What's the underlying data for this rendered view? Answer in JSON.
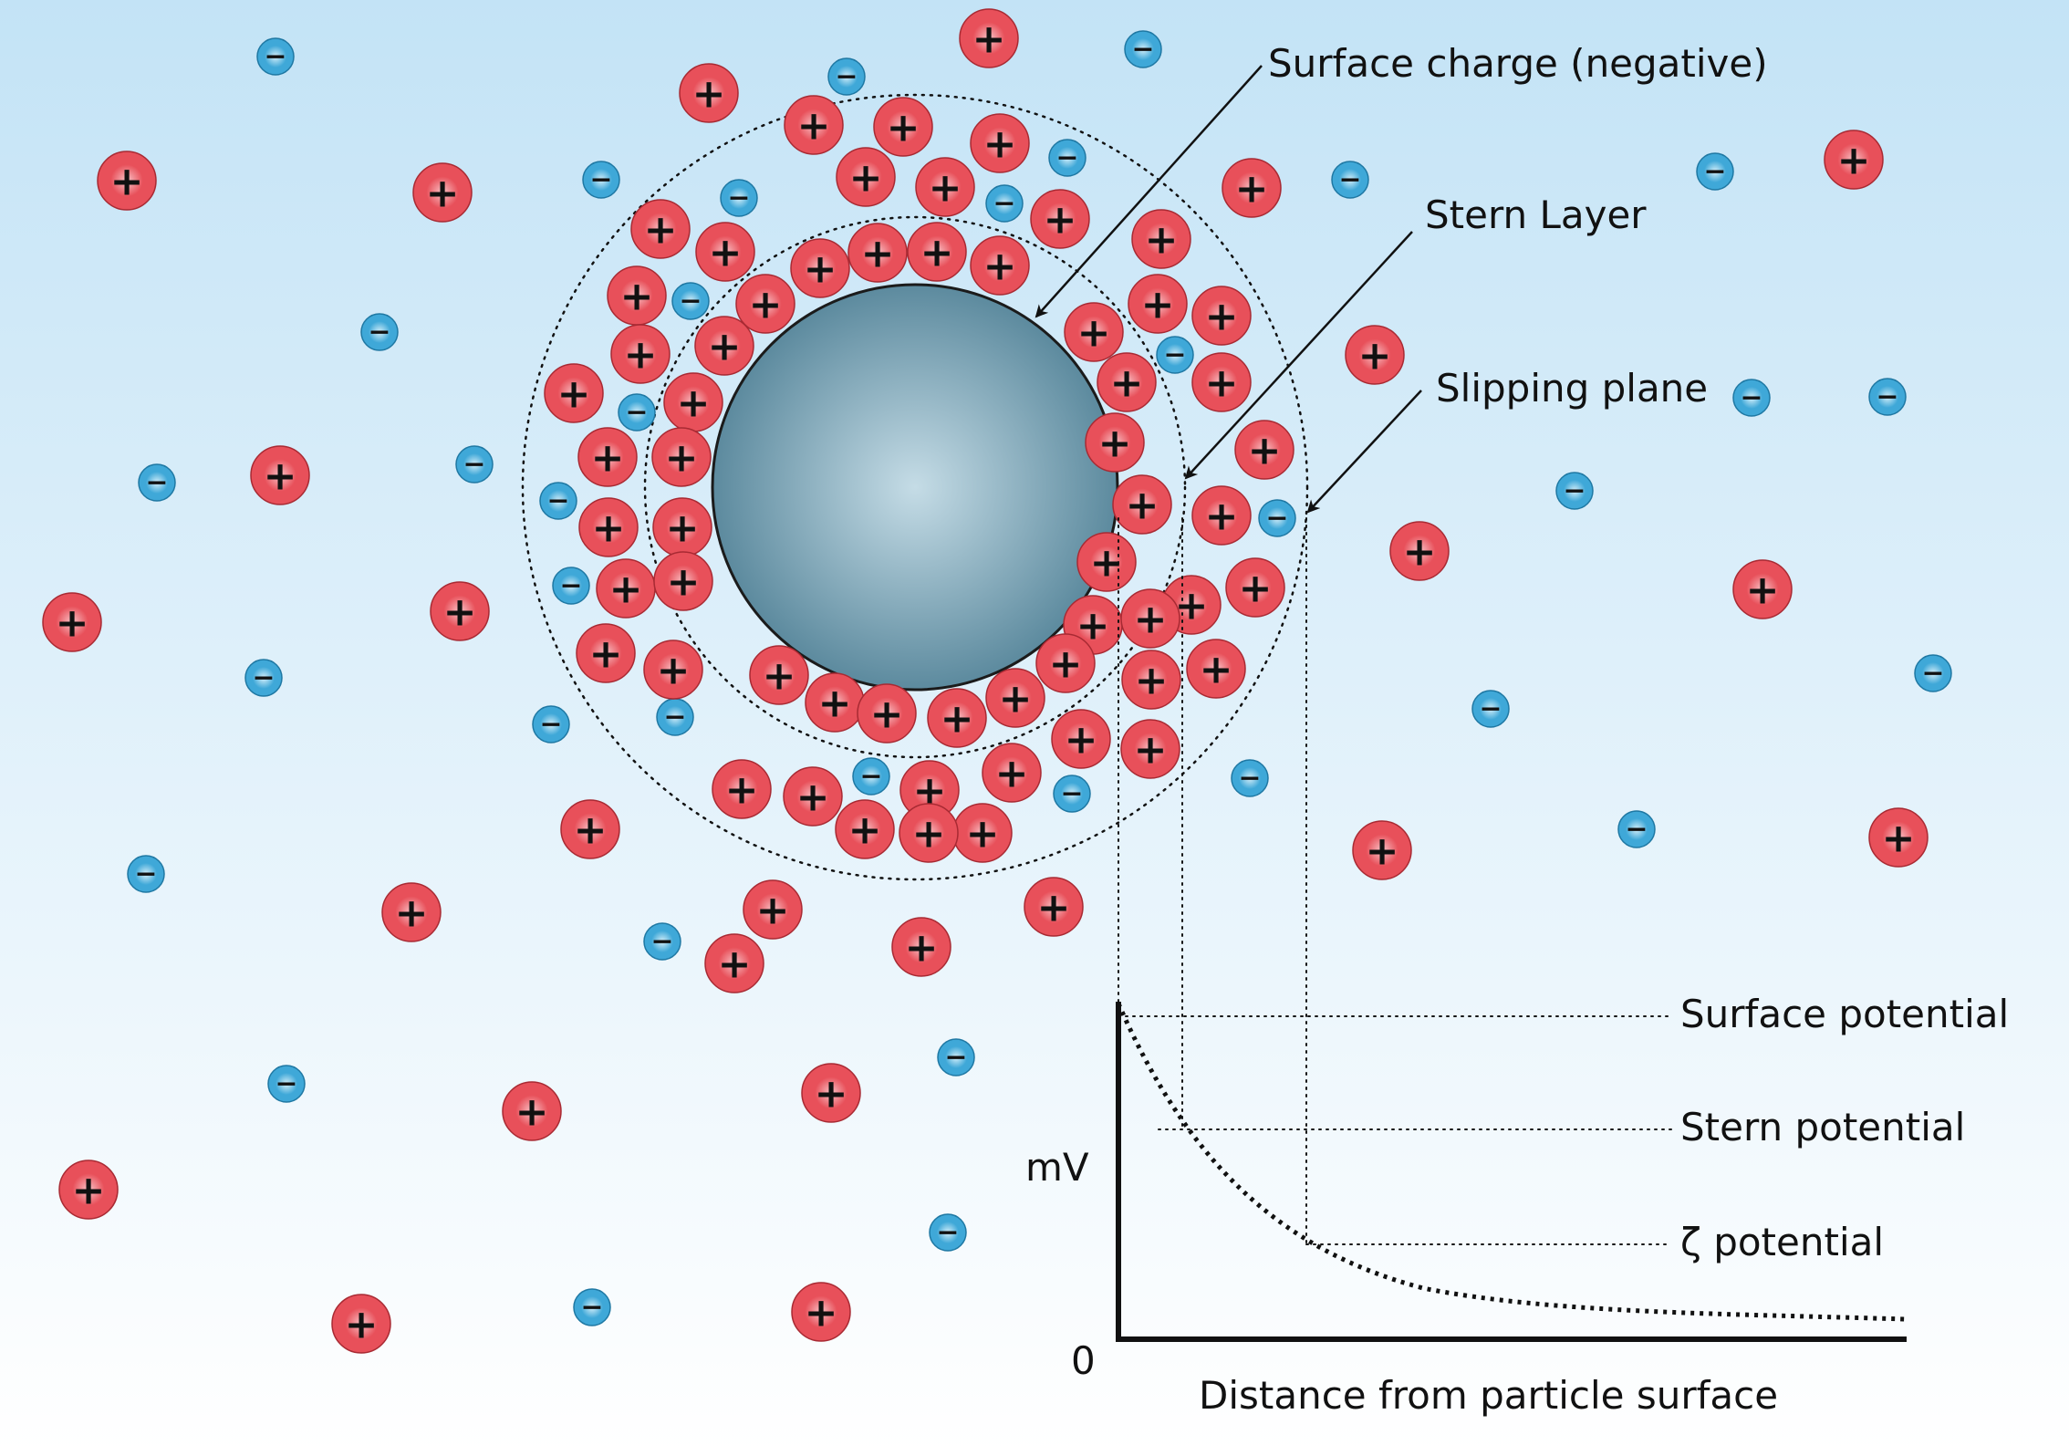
{
  "colors": {
    "background_top": "#c3e3f6",
    "background_bottom": "#ffffff",
    "particle_center": "#c5dce6",
    "particle_edge": "#5c8a9e",
    "cation_fill": "#e8505a",
    "cation_highlight": "#f8c3c7",
    "anion_fill": "#3fa8d8",
    "anion_highlight": "#d4eef9",
    "line": "#111111"
  },
  "ion_signs": {
    "cation": "+",
    "anion": "−"
  },
  "labels": {
    "surface_charge": "Surface charge (negative)",
    "stern_layer": "Stern Layer",
    "slipping_plane": "Slipping plane",
    "surface_potential": "Surface potential",
    "stern_potential": "Stern potential",
    "zeta_potential": "ζ potential"
  },
  "graph": {
    "y_label": "mV",
    "y_origin": "0",
    "x_label": "Distance from particle surface"
  }
}
